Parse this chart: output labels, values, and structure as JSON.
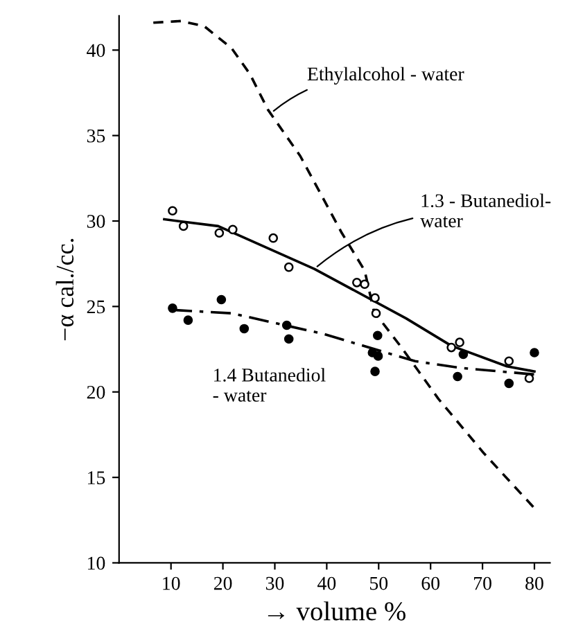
{
  "chart_data": {
    "type": "line",
    "xlabel": "→ volume %",
    "ylabel": "−α cal./cc.",
    "xlim": [
      0,
      83
    ],
    "ylim": [
      10,
      42
    ],
    "xticks": [
      10,
      20,
      30,
      40,
      50,
      60,
      70,
      80
    ],
    "yticks": [
      10,
      15,
      20,
      25,
      30,
      35,
      40
    ],
    "grid": false,
    "legend": false,
    "series": [
      {
        "type": "scatter",
        "marker": "circle",
        "color": "#000000",
        "x": [
          10.3,
          12.4,
          19.3,
          21.9,
          29.7,
          32.7,
          45.8,
          47.3,
          49.3,
          49.5,
          64,
          65.6,
          75.1,
          79
        ],
        "values": [
          30.6,
          29.7,
          29.3,
          29.5,
          29.0,
          27.3,
          26.4,
          26.3,
          25.5,
          24.6,
          22.6,
          22.9,
          21.8,
          20.8
        ]
      },
      {
        "type": "scatter",
        "marker": "circle",
        "color": "#000000",
        "x": [
          10.3,
          13.3,
          19.7,
          24.1,
          32.3,
          32.7,
          48.8,
          49.8,
          49.9,
          49.3,
          66.3,
          65.2,
          75.1,
          80
        ],
        "values": [
          24.9,
          24.2,
          25.4,
          23.7,
          23.9,
          23.1,
          22.3,
          23.3,
          22.1,
          21.2,
          22.2,
          20.9,
          20.5,
          22.3
        ]
      },
      {
        "line_style": "solid",
        "color": "#000000",
        "x": [
          8.7,
          19.1,
          37.6,
          55.3,
          64,
          74.7,
          80
        ],
        "values": [
          30.1,
          29.7,
          27.2,
          24.3,
          22.7,
          21.5,
          21.2
        ]
      },
      {
        "line_style": "dashdot",
        "color": "#000000",
        "x": [
          10.2,
          21.7,
          39.3,
          57,
          65.9,
          80.9
        ],
        "values": [
          24.8,
          24.6,
          23.4,
          21.8,
          21.4,
          21.0
        ]
      },
      {
        "line_style": "dashed",
        "color": "#000000",
        "x": [
          6.6,
          11.9,
          16.4,
          21.7,
          25.2,
          28.7,
          34.9,
          42.9,
          47.3,
          49.1,
          54.4,
          61.5,
          70.3,
          80
        ],
        "values": [
          41.6,
          41.7,
          41.4,
          40.1,
          38.6,
          36.5,
          33.8,
          29.3,
          27.1,
          24.7,
          22.6,
          19.6,
          16.4,
          13.2
        ]
      }
    ],
    "annotations": [
      {
        "text": "Ethylalcohol - water",
        "x": 29.2,
        "y": 36.3
      },
      {
        "text": "1.3 - Butanediol-\nwater",
        "x": 37.6,
        "y": 27.2
      },
      "1.4 Butanediol\n- water"
    ]
  }
}
